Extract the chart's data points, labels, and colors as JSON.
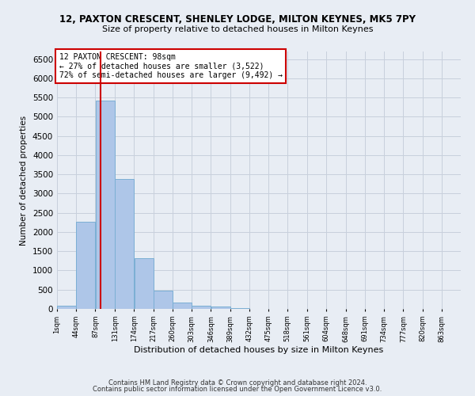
{
  "title": "12, PAXTON CRESCENT, SHENLEY LODGE, MILTON KEYNES, MK5 7PY",
  "subtitle": "Size of property relative to detached houses in Milton Keynes",
  "xlabel": "Distribution of detached houses by size in Milton Keynes",
  "ylabel": "Number of detached properties",
  "footer_line1": "Contains HM Land Registry data © Crown copyright and database right 2024.",
  "footer_line2": "Contains public sector information licensed under the Open Government Licence v3.0.",
  "annotation_title": "12 PAXTON CRESCENT: 98sqm",
  "annotation_line1": "← 27% of detached houses are smaller (3,522)",
  "annotation_line2": "72% of semi-detached houses are larger (9,492) →",
  "property_size_sqm": 98,
  "bar_labels": [
    "1sqm",
    "44sqm",
    "87sqm",
    "131sqm",
    "174sqm",
    "217sqm",
    "260sqm",
    "303sqm",
    "346sqm",
    "389sqm",
    "432sqm",
    "475sqm",
    "518sqm",
    "561sqm",
    "604sqm",
    "648sqm",
    "691sqm",
    "734sqm",
    "777sqm",
    "820sqm",
    "863sqm"
  ],
  "bar_values": [
    80,
    2270,
    5430,
    3380,
    1310,
    480,
    170,
    80,
    55,
    30,
    10,
    5,
    0,
    0,
    0,
    0,
    0,
    0,
    0,
    0,
    0
  ],
  "bin_starts": [
    1,
    44,
    87,
    131,
    174,
    217,
    260,
    303,
    346,
    389,
    432,
    475,
    518,
    561,
    604,
    648,
    691,
    734,
    777,
    820,
    863
  ],
  "bin_width": 43,
  "bar_color": "#aec6e8",
  "bar_edge_color": "#7bafd4",
  "vline_color": "#cc0000",
  "vline_x": 98,
  "xlim": [
    1,
    906
  ],
  "ylim": [
    0,
    6700
  ],
  "yticks": [
    0,
    500,
    1000,
    1500,
    2000,
    2500,
    3000,
    3500,
    4000,
    4500,
    5000,
    5500,
    6000,
    6500
  ],
  "grid_color": "#c8d0dc",
  "bg_color": "#e8edf4",
  "annotation_box_color": "#cc0000",
  "annotation_box_bg": "#ffffff",
  "title_fontsize": 8.5,
  "subtitle_fontsize": 8,
  "ylabel_fontsize": 7.5,
  "xlabel_fontsize": 8,
  "ytick_fontsize": 7.5,
  "xtick_fontsize": 6,
  "footer_fontsize": 6,
  "annotation_fontsize": 7
}
